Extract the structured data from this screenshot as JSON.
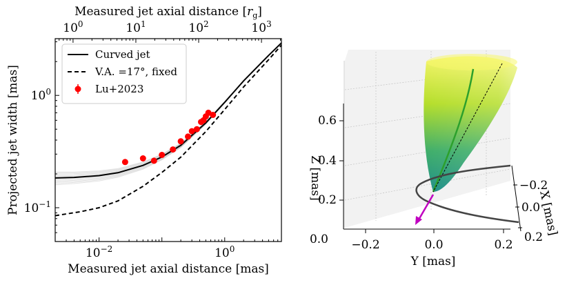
{
  "chart_data": [
    {
      "type": "line",
      "xlabel": "Measured jet axial distance [mas]",
      "ylabel": "Projected jet width [mas]",
      "top_xlabel": "Measured jet axial distance [r_g]",
      "top_xlabel_main": "Measured jet axial distance [",
      "top_xlabel_unit": "r",
      "top_xlabel_sub": "g",
      "top_xlabel_close": "]",
      "x_scale": "log",
      "y_scale": "log",
      "xlim": [
        0.002,
        8
      ],
      "ylim": [
        0.05,
        3.2
      ],
      "xticks": [
        {
          "value": 0.01,
          "base": "10",
          "exp": "−2"
        },
        {
          "value": 1,
          "base": "10",
          "exp": "0"
        }
      ],
      "yticks": [
        {
          "value": 0.1,
          "base": "10",
          "exp": "−1"
        },
        {
          "value": 1,
          "base": "10",
          "exp": "0"
        }
      ],
      "top_xticks": [
        {
          "value": 0.00385,
          "base": "10",
          "exp": "0"
        },
        {
          "value": 0.0385,
          "base": "10",
          "exp": "1"
        },
        {
          "value": 0.385,
          "base": "10",
          "exp": "2"
        },
        {
          "value": 3.85,
          "base": "10",
          "exp": "3"
        }
      ],
      "legend": {
        "position": "upper-left",
        "entries": [
          {
            "label": "Curved jet",
            "style": "solid"
          },
          {
            "label": "V.A. =17°, fixed",
            "style": "dashed"
          },
          {
            "label": "Lu+2023",
            "style": "marker"
          }
        ]
      },
      "series": [
        {
          "name": "Curved jet",
          "color": "#000000",
          "x": [
            0.002,
            0.004,
            0.01,
            0.02,
            0.05,
            0.1,
            0.2,
            0.5,
            1,
            2,
            5,
            8
          ],
          "y": [
            0.184,
            0.186,
            0.193,
            0.205,
            0.238,
            0.283,
            0.359,
            0.569,
            0.868,
            1.346,
            2.27,
            2.93
          ]
        },
        {
          "name": "V.A. =17°, fixed",
          "color": "#000000",
          "x": [
            0.002,
            0.005,
            0.01,
            0.02,
            0.05,
            0.1,
            0.2,
            0.5,
            1,
            2,
            5,
            8
          ],
          "y": [
            0.085,
            0.092,
            0.1,
            0.115,
            0.155,
            0.206,
            0.282,
            0.477,
            0.75,
            1.19,
            2.08,
            2.8
          ]
        },
        {
          "name": "Lu+2023",
          "color": "#ff0000",
          "x": [
            0.026,
            0.05,
            0.075,
            0.1,
            0.15,
            0.2,
            0.26,
            0.3,
            0.36,
            0.42,
            0.46,
            0.5,
            0.55,
            0.65
          ],
          "y": [
            0.255,
            0.275,
            0.262,
            0.295,
            0.33,
            0.39,
            0.43,
            0.48,
            0.5,
            0.58,
            0.6,
            0.65,
            0.7,
            0.67
          ]
        }
      ]
    },
    {
      "type": "3d-surface",
      "xlabel": "X [mas]",
      "ylabel": "Y [mas]",
      "zlabel": "Z [mas]",
      "xticks": [
        "0.2",
        "0.0",
        "0.2"
      ],
      "xticks_sign": [
        "−",
        "",
        ""
      ],
      "yticks": [
        "−0.2",
        "0.0",
        "0.2"
      ],
      "zticks": [
        "0.2",
        "0.4",
        "0.6"
      ],
      "zticks_extra": "0.0",
      "surface_colormap": [
        "#21918c",
        "#5ec962",
        "#fde725"
      ],
      "jet_axis_color": "#2ca02c",
      "helix_color": "#444444",
      "arrow_color": "#c000c0"
    }
  ]
}
